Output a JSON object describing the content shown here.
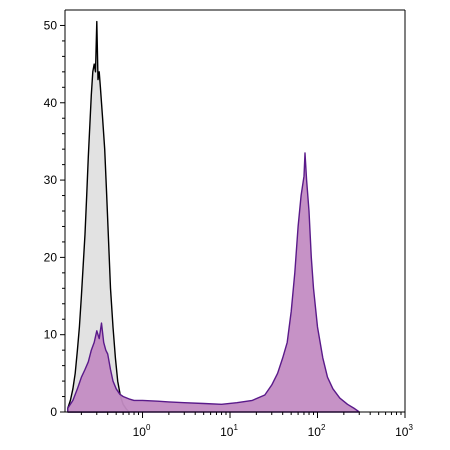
{
  "chart_data": {
    "type": "area",
    "title": "",
    "xlabel": "",
    "ylabel": "",
    "x_scale": "log",
    "xlim": [
      0.13,
      1000
    ],
    "ylim": [
      0,
      52
    ],
    "grid": false,
    "legend": "none",
    "x_ticks": [
      {
        "value": 1,
        "base": "10",
        "exp": "0"
      },
      {
        "value": 10,
        "base": "10",
        "exp": "1"
      },
      {
        "value": 100,
        "base": "10",
        "exp": "2"
      },
      {
        "value": 1000,
        "base": "10",
        "exp": "3"
      }
    ],
    "y_ticks": [
      {
        "value": 0,
        "label": "0"
      },
      {
        "value": 10,
        "label": "10"
      },
      {
        "value": 20,
        "label": "20"
      },
      {
        "value": 30,
        "label": "30"
      },
      {
        "value": 40,
        "label": "40"
      },
      {
        "value": 50,
        "label": "50"
      }
    ],
    "series": [
      {
        "fill": "#e2e2e2",
        "stroke": "#000000",
        "points": [
          [
            0.14,
            0.5
          ],
          [
            0.15,
            1.5
          ],
          [
            0.16,
            3
          ],
          [
            0.17,
            5
          ],
          [
            0.18,
            8
          ],
          [
            0.19,
            11
          ],
          [
            0.2,
            15
          ],
          [
            0.21,
            19
          ],
          [
            0.22,
            23
          ],
          [
            0.23,
            28
          ],
          [
            0.24,
            33
          ],
          [
            0.25,
            37
          ],
          [
            0.26,
            41
          ],
          [
            0.27,
            44
          ],
          [
            0.28,
            45
          ],
          [
            0.29,
            44
          ],
          [
            0.3,
            50.5
          ],
          [
            0.31,
            43
          ],
          [
            0.32,
            44
          ],
          [
            0.33,
            42
          ],
          [
            0.34,
            40
          ],
          [
            0.35,
            38
          ],
          [
            0.37,
            34
          ],
          [
            0.39,
            28
          ],
          [
            0.41,
            22
          ],
          [
            0.43,
            16
          ],
          [
            0.46,
            11
          ],
          [
            0.49,
            7
          ],
          [
            0.52,
            4
          ],
          [
            0.56,
            2
          ],
          [
            0.6,
            1
          ],
          [
            0.65,
            0.4
          ],
          [
            0.7,
            0
          ]
        ]
      },
      {
        "fill": "#c38cc3",
        "stroke": "#5a1a8a",
        "points": [
          [
            0.14,
            0.5
          ],
          [
            0.16,
            1.5
          ],
          [
            0.18,
            3
          ],
          [
            0.2,
            4.5
          ],
          [
            0.22,
            5.5
          ],
          [
            0.24,
            6.5
          ],
          [
            0.26,
            8
          ],
          [
            0.28,
            9
          ],
          [
            0.3,
            10.5
          ],
          [
            0.32,
            9.5
          ],
          [
            0.34,
            11.5
          ],
          [
            0.36,
            9
          ],
          [
            0.38,
            8
          ],
          [
            0.4,
            7.5
          ],
          [
            0.43,
            5.5
          ],
          [
            0.46,
            4
          ],
          [
            0.5,
            3
          ],
          [
            0.55,
            2.3
          ],
          [
            0.6,
            2
          ],
          [
            0.7,
            1.7
          ],
          [
            0.8,
            1.5
          ],
          [
            1,
            1.5
          ],
          [
            1.5,
            1.4
          ],
          [
            2,
            1.3
          ],
          [
            3,
            1.2
          ],
          [
            5,
            1.1
          ],
          [
            8,
            1
          ],
          [
            12,
            1.2
          ],
          [
            18,
            1.5
          ],
          [
            25,
            2.2
          ],
          [
            30,
            3.5
          ],
          [
            35,
            5
          ],
          [
            40,
            7
          ],
          [
            45,
            9
          ],
          [
            50,
            13
          ],
          [
            55,
            18
          ],
          [
            60,
            24
          ],
          [
            65,
            28
          ],
          [
            70,
            30.5
          ],
          [
            72,
            33.5
          ],
          [
            75,
            30
          ],
          [
            80,
            26
          ],
          [
            85,
            20
          ],
          [
            90,
            16
          ],
          [
            100,
            11
          ],
          [
            115,
            7
          ],
          [
            130,
            4.5
          ],
          [
            150,
            3
          ],
          [
            180,
            1.8
          ],
          [
            220,
            1
          ],
          [
            260,
            0.5
          ],
          [
            300,
            0
          ]
        ]
      }
    ]
  },
  "colors": {
    "axis": "#000000",
    "background": "#ffffff"
  }
}
